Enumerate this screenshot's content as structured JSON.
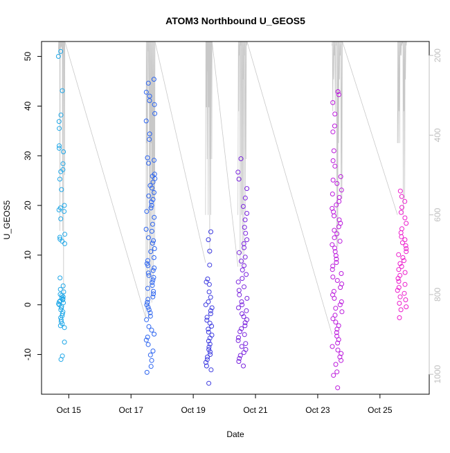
{
  "chart_data": {
    "type": "scatter",
    "title": "ATOM3 Northbound U_GEOS5",
    "xlabel": "Date",
    "ylabel": "U_GEOS5",
    "xlim": [
      "2017-10-14T03:00",
      "2017-10-26T14:00"
    ],
    "ylim": [
      -18,
      53
    ],
    "y2lim": [
      1050,
      165
    ],
    "x_ticks": [
      {
        "date": "2017-10-15T00:00",
        "label": "Oct 15"
      },
      {
        "date": "2017-10-17T00:00",
        "label": "Oct 17"
      },
      {
        "date": "2017-10-19T00:00",
        "label": "Oct 19"
      },
      {
        "date": "2017-10-21T00:00",
        "label": "Oct 21"
      },
      {
        "date": "2017-10-23T00:00",
        "label": "Oct 23"
      },
      {
        "date": "2017-10-25T00:00",
        "label": "Oct 25"
      }
    ],
    "y_ticks": [
      -10,
      0,
      10,
      20,
      30,
      40,
      50
    ],
    "y2_ticks": [
      200,
      400,
      600,
      800,
      1000
    ],
    "grid": false,
    "legend": "none",
    "marker": "open-circle",
    "secondary_axis": {
      "side": "right",
      "color": "#bfbfbf"
    },
    "pressure_trace_color": "#c8c8c8",
    "flights": [
      {
        "date": "2017-10-14",
        "center": "2017-10-14T18:30",
        "width_h": 5,
        "color": "#1ea7e8",
        "u_values": [
          51,
          50,
          43.1,
          38.2,
          36.9,
          35.5,
          32,
          31.5,
          30.8,
          28.4,
          27.2,
          26.8,
          25.3,
          23.2,
          20,
          19.5,
          19.1,
          18.8,
          17.3,
          14.2,
          13.6,
          13.2,
          12.8,
          12.3,
          5.4,
          3.8,
          3.1,
          2.6,
          2.1,
          1.9,
          1.6,
          1.4,
          1.2,
          1,
          0.8,
          0.6,
          0.4,
          0.2,
          0,
          -0.3,
          -0.6,
          -1,
          -1.4,
          -1.8,
          -2.2,
          -2.6,
          -3,
          -3.4,
          -3.8,
          -4.2,
          -4.6,
          -7.5,
          -10.3,
          -11
        ],
        "p_values": [
          850,
          820,
          640,
          500,
          380,
          300,
          250,
          220,
          200,
          185,
          180,
          178,
          176,
          175
        ]
      },
      {
        "date": "2017-10-17",
        "center": "2017-10-17T15:00",
        "width_h": 7,
        "color": "#2a63f0",
        "u_values": [
          45.4,
          44.6,
          42.8,
          42,
          41.1,
          40.3,
          38.5,
          37,
          34.4,
          33.3,
          29.6,
          29.1,
          28.5,
          26.3,
          25.9,
          25.4,
          24.7,
          24,
          23.5,
          22.6,
          21.9,
          21.2,
          20.7,
          20,
          19.5,
          18.8,
          17.6,
          16.2,
          15.2,
          14.8,
          13.5,
          12.9,
          12.4,
          11.3,
          10.7,
          9.5,
          8.9,
          8.3,
          7.9,
          7.4,
          6.9,
          6.4,
          5.9,
          5.5,
          5,
          4.5,
          3.9,
          3.3,
          2.7,
          2.2,
          1.6,
          1.1,
          0.5,
          0,
          -0.5,
          -1,
          -1.6,
          -2.3,
          -3,
          -4.4,
          -5.1,
          -5.9,
          -6.5,
          -7.1,
          -8,
          -9.3,
          -10.1,
          -11.2,
          -12.4,
          -13.6
        ],
        "p_values": [
          180,
          190,
          240,
          320,
          420,
          560,
          680,
          760,
          820,
          860
        ]
      },
      {
        "date": "2017-10-19",
        "center": "2017-10-19T12:00",
        "width_h": 5,
        "color": "#3c3ae0",
        "u_values": [
          14.7,
          13.1,
          10.8,
          8,
          5.2,
          4.6,
          4.1,
          2.6,
          1.5,
          0.6,
          0,
          -0.6,
          -1.2,
          -1.8,
          -2.5,
          -3.1,
          -3.7,
          -4.3,
          -4.9,
          -5.5,
          -6.1,
          -6.7,
          -7.3,
          -7.9,
          -8.5,
          -9,
          -9.5,
          -10,
          -10.5,
          -11,
          -11.6,
          -12.3,
          -13.1,
          -15.8
        ],
        "p_values": [
          175,
          240,
          330,
          460,
          600,
          700,
          720
        ]
      },
      {
        "date": "2017-10-20",
        "center": "2017-10-20T14:00",
        "width_h": 7,
        "color": "#7a24de",
        "u_values": [
          29.4,
          26.7,
          25.3,
          23.4,
          21.5,
          19.8,
          18.4,
          17.1,
          15.6,
          14.4,
          13.1,
          12.3,
          11.5,
          10.5,
          9.6,
          8.8,
          7.9,
          7,
          6.1,
          5.3,
          4.6,
          3.6,
          2.9,
          2,
          1.3,
          0.6,
          0,
          -0.6,
          -1.2,
          -1.8,
          -2.4,
          -3,
          -3.6,
          -4.2,
          -4.8,
          -5.4,
          -6,
          -6.6,
          -7.2,
          -7.8,
          -8.4,
          -9,
          -9.6,
          -10.2,
          -10.8,
          -11.4,
          -12.3
        ],
        "p_values": [
          175,
          200,
          260,
          340,
          460,
          600,
          700,
          730
        ]
      },
      {
        "date": "2017-10-23",
        "center": "2017-10-23T15:00",
        "width_h": 8,
        "color": "#bb18dc",
        "u_values": [
          42.9,
          42.3,
          40.7,
          38.4,
          36,
          34.8,
          31,
          29,
          27.9,
          25.8,
          25.1,
          24.4,
          23.1,
          22.3,
          21.6,
          20.8,
          20.1,
          19.4,
          18.7,
          17.9,
          17.1,
          16.4,
          15.7,
          15,
          14.3,
          13.5,
          12.8,
          12.1,
          11.4,
          10.7,
          9.9,
          9.2,
          8.5,
          7.8,
          7.1,
          6.3,
          5.6,
          4.9,
          4.2,
          3.5,
          2.7,
          2,
          1.3,
          0.6,
          0,
          -0.7,
          -1.4,
          -2.1,
          -2.8,
          -3.5,
          -4.2,
          -4.9,
          -5.6,
          -6.3,
          -7,
          -7.7,
          -8.4,
          -9.1,
          -9.8,
          -10.5,
          -11.2,
          -12,
          -13.5,
          -14.2,
          -16.7
        ],
        "p_values": [
          175,
          180,
          200,
          260,
          340,
          420,
          560,
          680,
          800,
          900
        ]
      },
      {
        "date": "2017-10-25",
        "center": "2017-10-25T17:00",
        "width_h": 7,
        "color": "#ec1bcc",
        "u_values": [
          22.9,
          21.8,
          20.8,
          19.6,
          18.6,
          17.5,
          16.4,
          15.3,
          14.5,
          13.7,
          13.1,
          12.5,
          11.9,
          11.3,
          10.7,
          10.1,
          9.5,
          8.9,
          8.3,
          7.7,
          7.1,
          6.5,
          5.9,
          5.3,
          4.7,
          4.1,
          3.5,
          2.9,
          2.3,
          1.6,
          1,
          0.3,
          -0.4,
          -1,
          -2.6
        ],
        "p_values": [
          170,
          175,
          200,
          260,
          340,
          420,
          560,
          600
        ]
      }
    ]
  }
}
